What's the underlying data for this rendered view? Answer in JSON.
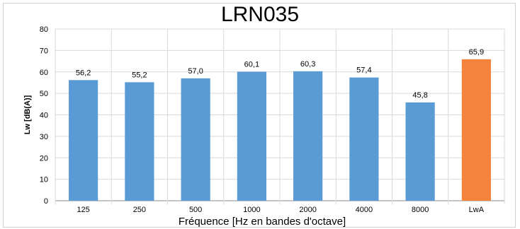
{
  "chart_data": {
    "type": "bar",
    "title": "LRN035",
    "xlabel": "Fréquence [Hz en bandes d'octave]",
    "ylabel": "Lw [dB(A)]",
    "ylim": [
      0,
      80
    ],
    "yticks": [
      0,
      10,
      20,
      30,
      40,
      50,
      60,
      70,
      80
    ],
    "grid": true,
    "legend": "none",
    "categories": [
      "125",
      "250",
      "500",
      "1000",
      "2000",
      "4000",
      "8000",
      "LwA"
    ],
    "values": [
      56.2,
      55.2,
      57.0,
      60.1,
      60.3,
      57.4,
      45.8,
      65.9
    ],
    "value_labels": [
      "56,2",
      "55,2",
      "57,0",
      "60,1",
      "60,3",
      "57,4",
      "45,8",
      "65,9"
    ],
    "colors": [
      "#5b9bd5",
      "#5b9bd5",
      "#5b9bd5",
      "#5b9bd5",
      "#5b9bd5",
      "#5b9bd5",
      "#5b9bd5",
      "#f4843c"
    ]
  }
}
